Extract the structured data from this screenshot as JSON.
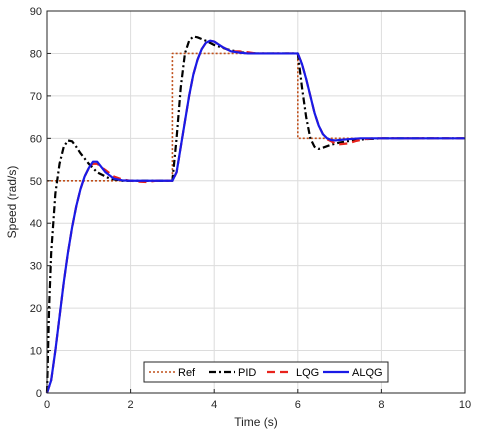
{
  "chart_data": {
    "type": "line",
    "title": "",
    "xlabel": "Time (s)",
    "ylabel": "Speed (rad/s)",
    "xlim": [
      0,
      10
    ],
    "ylim": [
      0,
      90
    ],
    "xticks": [
      0,
      2,
      4,
      6,
      8,
      10
    ],
    "yticks": [
      0,
      10,
      20,
      30,
      40,
      50,
      60,
      70,
      80,
      90
    ],
    "grid": true,
    "legend": {
      "placement": "bottom-center",
      "orientation": "horizontal"
    },
    "series": [
      {
        "name": "Ref",
        "color": "#c0501c",
        "style": "dotted",
        "x": [
          0,
          3,
          3,
          6,
          6,
          10
        ],
        "y": [
          50,
          50,
          80,
          80,
          60,
          60
        ]
      },
      {
        "name": "PID",
        "color": "#000000",
        "style": "dashdot",
        "x": [
          0,
          0.05,
          0.1,
          0.2,
          0.3,
          0.4,
          0.5,
          0.6,
          0.7,
          0.8,
          1.0,
          1.2,
          1.5,
          1.8,
          2.1,
          2.5,
          3.0,
          3.1,
          3.2,
          3.3,
          3.4,
          3.5,
          3.6,
          3.8,
          4.0,
          4.3,
          4.6,
          5.0,
          5.5,
          6.0,
          6.1,
          6.2,
          6.3,
          6.4,
          6.5,
          6.6,
          6.8,
          7.0,
          7.3,
          7.6,
          8.0,
          9.0,
          10.0
        ],
        "y": [
          0,
          20,
          33,
          47,
          54,
          58,
          59.5,
          59.3,
          58,
          56.5,
          54,
          52,
          50.5,
          50,
          50,
          50,
          50,
          60,
          72,
          80,
          83,
          84,
          83.8,
          83,
          82,
          81,
          80.3,
          80,
          80,
          80,
          72,
          65,
          60,
          58,
          57.5,
          57.8,
          58.5,
          59,
          59.5,
          59.8,
          60,
          60,
          60
        ]
      },
      {
        "name": "LQG",
        "color": "#e8231c",
        "style": "dashed",
        "x": [
          0,
          0.1,
          0.2,
          0.3,
          0.4,
          0.5,
          0.6,
          0.7,
          0.8,
          0.9,
          1.0,
          1.1,
          1.2,
          1.4,
          1.6,
          1.8,
          2.0,
          2.2,
          2.4,
          2.6,
          3.0,
          3.1,
          3.2,
          3.3,
          3.4,
          3.5,
          3.6,
          3.7,
          3.8,
          3.9,
          4.0,
          4.2,
          4.4,
          4.6,
          4.8,
          5.0,
          5.5,
          6.0,
          6.1,
          6.2,
          6.3,
          6.4,
          6.5,
          6.6,
          6.7,
          6.8,
          6.9,
          7.0,
          7.2,
          7.4,
          7.6,
          7.8,
          8.0,
          9.0,
          10.0
        ],
        "y": [
          0,
          3,
          10,
          18,
          26,
          33,
          39,
          44,
          48,
          51,
          53,
          54,
          54,
          52.5,
          51,
          50.3,
          50,
          49.8,
          49.7,
          50,
          50,
          52,
          58,
          64,
          70,
          75,
          78.5,
          81,
          82.5,
          83,
          82.8,
          81.5,
          80.5,
          80.5,
          80.3,
          80,
          80,
          80,
          77.5,
          74,
          70,
          66,
          63,
          61,
          59.8,
          59.3,
          58.8,
          58.6,
          58.8,
          59.4,
          59.8,
          60,
          60,
          60,
          60
        ]
      },
      {
        "name": "ALQG",
        "color": "#1a1ae6",
        "style": "solid",
        "x": [
          0,
          0.1,
          0.2,
          0.3,
          0.4,
          0.5,
          0.6,
          0.7,
          0.8,
          0.9,
          1.0,
          1.1,
          1.2,
          1.4,
          1.6,
          1.8,
          2.0,
          2.5,
          3.0,
          3.1,
          3.2,
          3.3,
          3.4,
          3.5,
          3.6,
          3.7,
          3.8,
          3.9,
          4.0,
          4.2,
          4.4,
          4.6,
          4.8,
          5.0,
          5.5,
          6.0,
          6.1,
          6.2,
          6.3,
          6.4,
          6.5,
          6.6,
          6.7,
          6.8,
          6.9,
          7.0,
          7.2,
          7.5,
          8.0,
          9.0,
          10.0
        ],
        "y": [
          0,
          3,
          10,
          18,
          26,
          33,
          39,
          44,
          48,
          51,
          53,
          54.5,
          54.5,
          52,
          50.5,
          50.1,
          50,
          50,
          50,
          52,
          58,
          64,
          70,
          75,
          78.5,
          81,
          82.5,
          83,
          82.8,
          81.5,
          80.5,
          80.2,
          80,
          80,
          80,
          80,
          77.5,
          74,
          70,
          66,
          63,
          61,
          60,
          59.6,
          59.5,
          59.6,
          59.8,
          60,
          60,
          60,
          60
        ]
      }
    ]
  }
}
